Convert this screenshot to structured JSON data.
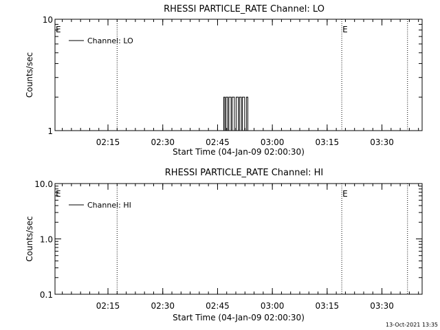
{
  "footer": {
    "timestamp": "13-Oct-2021 13:35"
  },
  "chart_data": [
    {
      "type": "line",
      "title": "RHESSI PARTICLE_RATE Channel: LO",
      "xlabel": "Start Time (04-Jan-09 02:00:30)",
      "ylabel": "Counts/sec",
      "yscale": "log",
      "ylim": [
        1,
        10
      ],
      "xlim_minutes": [
        0,
        100.5
      ],
      "xticks": [
        {
          "value": 14.5,
          "label": "02:15"
        },
        {
          "value": 29.5,
          "label": "02:30"
        },
        {
          "value": 44.5,
          "label": "02:45"
        },
        {
          "value": 59.5,
          "label": "03:00"
        },
        {
          "value": 74.5,
          "label": "03:15"
        },
        {
          "value": 89.5,
          "label": "03:30"
        }
      ],
      "yticks": [
        {
          "value": 1,
          "label": "1"
        },
        {
          "value": 10,
          "label": "10"
        }
      ],
      "legend": {
        "position": "top-left",
        "entries": [
          "Channel: LO"
        ]
      },
      "event_markers": [
        {
          "x": 17.0,
          "label": ""
        },
        {
          "x": 78.5,
          "label": "E"
        },
        {
          "x": 96.5,
          "label": ""
        }
      ],
      "left_marker_label": "E",
      "grid": false,
      "series": [
        {
          "name": "Channel: LO",
          "x": [
            0,
            46.2,
            46.2,
            46.5,
            46.5,
            46.8,
            46.8,
            47.3,
            47.3,
            47.6,
            47.6,
            48.2,
            48.2,
            48.5,
            48.5,
            49.1,
            49.1,
            49.6,
            49.6,
            50.2,
            50.2,
            50.5,
            50.5,
            51.0,
            51.0,
            51.3,
            51.3,
            51.9,
            51.9,
            52.4,
            52.4,
            52.8,
            52.8,
            53.3,
            53.3,
            100.5
          ],
          "values": [
            1,
            1,
            2,
            2,
            1,
            1,
            2,
            2,
            1,
            1,
            2,
            2,
            1,
            1,
            2,
            2,
            1,
            1,
            2,
            2,
            1,
            1,
            2,
            2,
            1,
            1,
            2,
            2,
            1,
            1,
            2,
            2,
            1,
            1,
            1,
            1
          ]
        }
      ]
    },
    {
      "type": "line",
      "title": "RHESSI PARTICLE_RATE Channel: HI",
      "xlabel": "Start Time (04-Jan-09 02:00:30)",
      "ylabel": "Counts/sec",
      "yscale": "log",
      "ylim": [
        0.1,
        10
      ],
      "xlim_minutes": [
        0,
        100.5
      ],
      "xticks": [
        {
          "value": 14.5,
          "label": "02:15"
        },
        {
          "value": 29.5,
          "label": "02:30"
        },
        {
          "value": 44.5,
          "label": "02:45"
        },
        {
          "value": 59.5,
          "label": "03:00"
        },
        {
          "value": 74.5,
          "label": "03:15"
        },
        {
          "value": 89.5,
          "label": "03:30"
        }
      ],
      "yticks": [
        {
          "value": 0.1,
          "label": "0.1"
        },
        {
          "value": 1,
          "label": "1.0"
        },
        {
          "value": 10,
          "label": "10.0"
        }
      ],
      "legend": {
        "position": "top-left",
        "entries": [
          "Channel: HI"
        ]
      },
      "event_markers": [
        {
          "x": 17.0,
          "label": ""
        },
        {
          "x": 78.5,
          "label": "E"
        },
        {
          "x": 96.5,
          "label": ""
        }
      ],
      "left_marker_label": "E",
      "grid": false,
      "series": [
        {
          "name": "Channel: HI",
          "x": [],
          "values": []
        }
      ]
    }
  ]
}
